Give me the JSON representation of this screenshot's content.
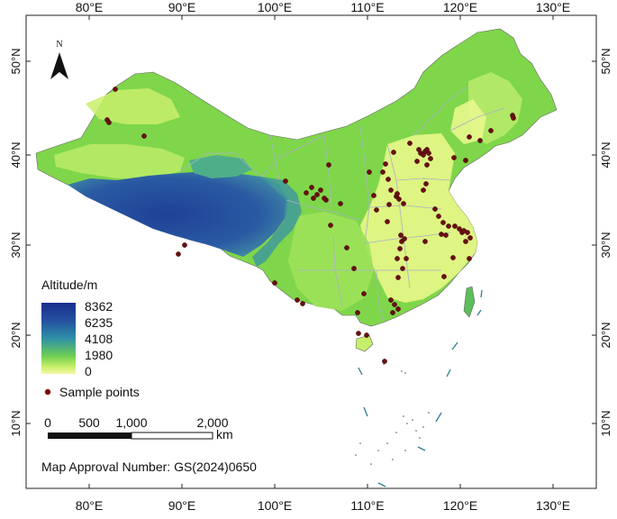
{
  "top_axis": {
    "ticks": [
      "80°E",
      "90°E",
      "100°E",
      "110°E",
      "120°E",
      "130°E"
    ]
  },
  "bottom_axis": {
    "ticks": [
      "80°E",
      "90°E",
      "100°E",
      "110°E",
      "120°E",
      "130°E"
    ]
  },
  "left_axis": {
    "ticks": [
      "50°N",
      "40°N",
      "30°N",
      "20°N",
      "10°N"
    ]
  },
  "right_axis": {
    "ticks": [
      "50°N",
      "40°N",
      "30°N",
      "20°N",
      "10°N"
    ]
  },
  "north_arrow": {
    "label": "N"
  },
  "legend": {
    "title": "Altitude/m",
    "scale_values": [
      "8362",
      "6235",
      "4108",
      "1980",
      "0"
    ],
    "sample_points_label": "Sample  points",
    "colors": {
      "high": "#1a2e8c",
      "mid": "#2f8fa8",
      "low": "#c8ef6a",
      "lowest": "#f4f7a6",
      "point": "#6b0f0f"
    }
  },
  "scale_bar": {
    "labels": [
      "0",
      "500",
      "1,000",
      "2,000"
    ],
    "unit": "km"
  },
  "approval_number": "Map Approval Number: GS(2024)0650",
  "sample_points": [
    [
      128,
      99
    ],
    [
      119,
      133
    ],
    [
      121,
      136
    ],
    [
      160,
      151
    ],
    [
      205,
      272
    ],
    [
      198,
      282
    ],
    [
      305,
      314
    ],
    [
      317,
      201
    ],
    [
      330,
      333
    ],
    [
      336,
      337
    ],
    [
      340,
      214
    ],
    [
      346,
      208
    ],
    [
      348,
      220
    ],
    [
      352,
      216
    ],
    [
      356,
      211
    ],
    [
      365,
      183
    ],
    [
      362,
      222
    ],
    [
      360,
      220
    ],
    [
      367,
      250
    ],
    [
      378,
      226
    ],
    [
      385,
      275
    ],
    [
      393,
      298
    ],
    [
      397,
      347
    ],
    [
      398,
      370
    ],
    [
      407,
      372
    ],
    [
      404,
      326
    ],
    [
      410,
      191
    ],
    [
      415,
      217
    ],
    [
      418,
      233
    ],
    [
      425,
      191
    ],
    [
      428,
      182
    ],
    [
      431,
      199
    ],
    [
      432,
      227
    ],
    [
      430,
      246
    ],
    [
      434,
      211
    ],
    [
      437,
      169
    ],
    [
      440,
      218
    ],
    [
      443,
      221
    ],
    [
      444,
      276
    ],
    [
      441,
      287
    ],
    [
      442,
      308
    ],
    [
      445,
      261
    ],
    [
      446,
      268
    ],
    [
      449,
      265
    ],
    [
      447,
      298
    ],
    [
      451,
      287
    ],
    [
      434,
      333
    ],
    [
      438,
      338
    ],
    [
      442,
      343
    ],
    [
      436,
      347
    ],
    [
      427,
      401
    ],
    [
      441,
      215
    ],
    [
      448,
      226
    ],
    [
      455,
      159
    ],
    [
      463,
      179
    ],
    [
      465,
      166
    ],
    [
      467,
      170
    ],
    [
      470,
      172
    ],
    [
      472,
      168
    ],
    [
      474,
      166
    ],
    [
      476,
      170
    ],
    [
      478,
      176
    ],
    [
      474,
      183
    ],
    [
      470,
      211
    ],
    [
      473,
      204
    ],
    [
      483,
      232
    ],
    [
      487,
      240
    ],
    [
      492,
      247
    ],
    [
      498,
      251
    ],
    [
      505,
      251
    ],
    [
      510,
      254
    ],
    [
      513,
      258
    ],
    [
      515,
      256
    ],
    [
      519,
      258
    ],
    [
      517,
      268
    ],
    [
      522,
      264
    ],
    [
      521,
      287
    ],
    [
      490,
      260
    ],
    [
      472,
      268
    ],
    [
      495,
      261
    ],
    [
      503,
      286
    ],
    [
      493,
      307
    ],
    [
      504,
      175
    ],
    [
      517,
      178
    ],
    [
      521,
      152
    ],
    [
      533,
      156
    ],
    [
      545,
      145
    ],
    [
      569,
      128
    ],
    [
      570,
      131
    ]
  ]
}
